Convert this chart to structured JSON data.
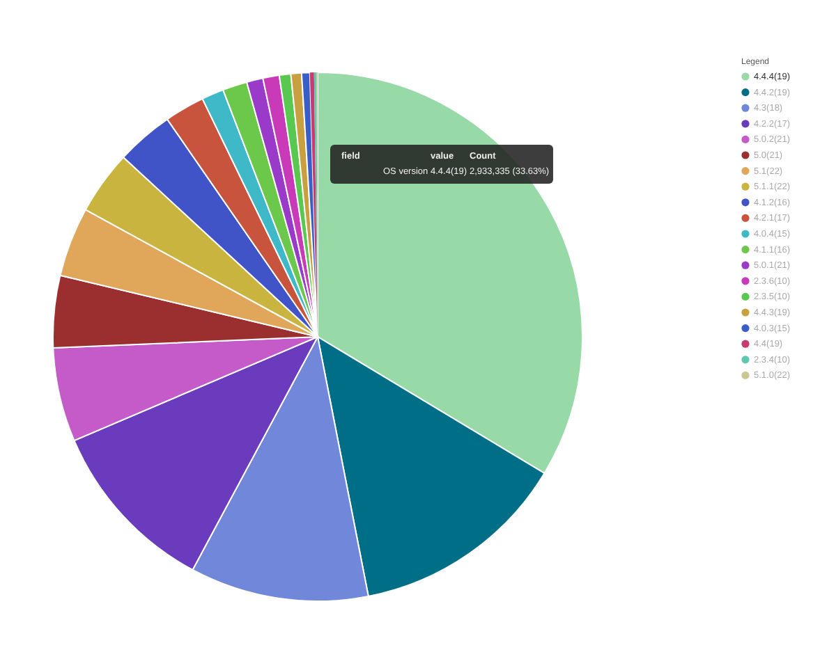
{
  "chart_data": {
    "type": "pie",
    "legend_title": "Legend",
    "legend": "right",
    "categories": [
      "4.4.4(19)",
      "4.4.2(19)",
      "4.3(18)",
      "4.2.2(17)",
      "5.0.2(21)",
      "5.0(21)",
      "5.1(22)",
      "5.1.1(22)",
      "4.1.2(16)",
      "4.2.1(17)",
      "4.0.4(15)",
      "4.1.1(16)",
      "5.0.1(21)",
      "2.3.6(10)",
      "2.3.5(10)",
      "4.4.3(19)",
      "4.0.3(15)",
      "4.4(19)",
      "2.3.4(10)",
      "5.1.0(22)"
    ],
    "values": [
      33.63,
      13.3,
      10.9,
      10.75,
      5.75,
      4.4,
      4.25,
      3.9,
      3.5,
      2.45,
      1.35,
      1.5,
      1.0,
      1.0,
      0.7,
      0.65,
      0.5,
      0.25,
      0.15,
      0.07
    ],
    "colors": [
      "#98d9a8",
      "#006e87",
      "#7187d9",
      "#6a3bbd",
      "#c45bc9",
      "#9b2f2f",
      "#e0a65a",
      "#c8b43e",
      "#4054c8",
      "#c8543e",
      "#3fb8c8",
      "#6cc84a",
      "#9a3ac8",
      "#c83ab8",
      "#58c850",
      "#c8a040",
      "#3a5ec8",
      "#c83a70",
      "#60c8b0",
      "#c8c890"
    ],
    "annotations": [
      "field",
      "value",
      "Count",
      "OS version",
      "4.4.4(19)",
      "2,933,335 (33.63%)"
    ]
  }
}
